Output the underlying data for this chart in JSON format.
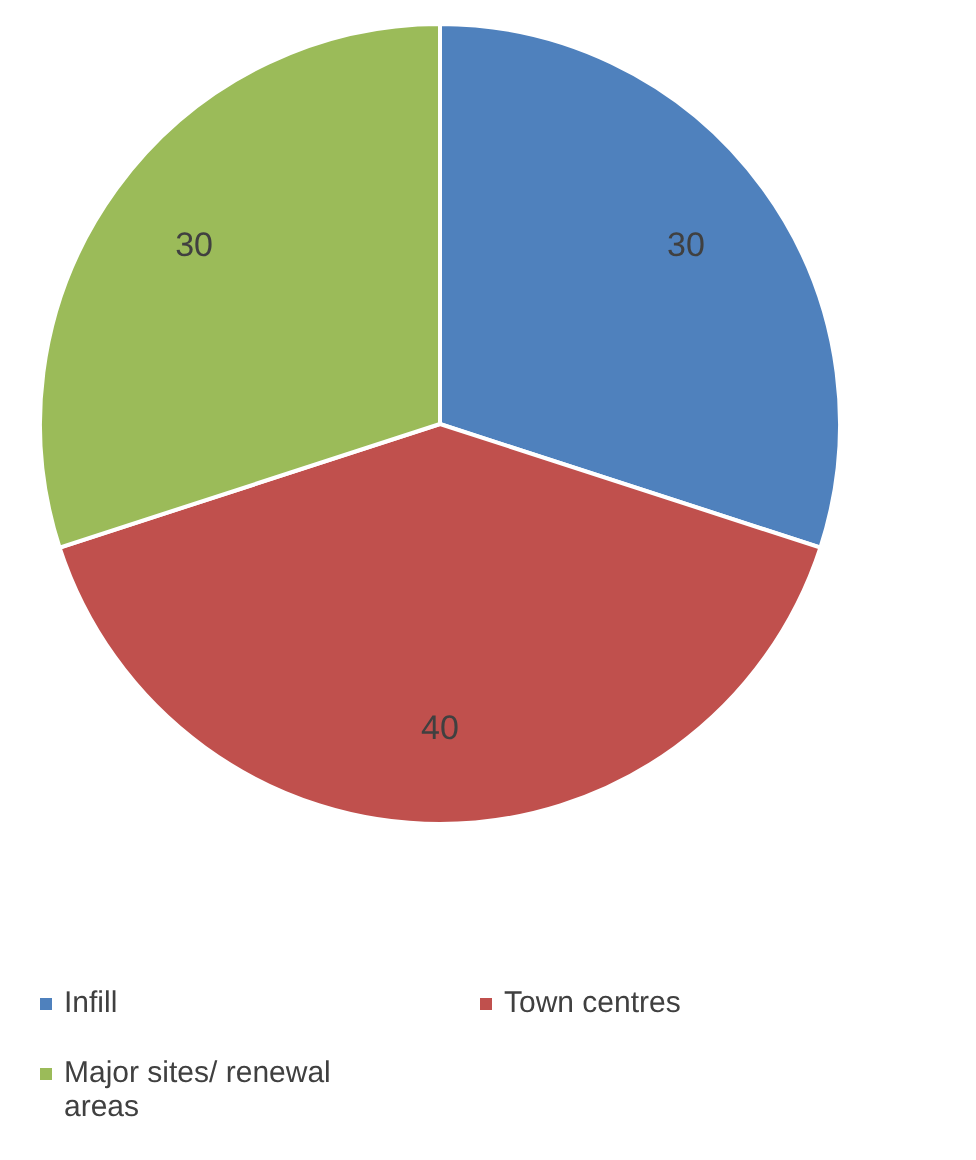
{
  "chart_data": {
    "type": "pie",
    "categories": [
      "Infill",
      "Town centres",
      "Major sites/ renewal areas"
    ],
    "values": [
      30,
      40,
      30
    ],
    "colors": [
      "#4f81bd",
      "#c0504d",
      "#9bbb59"
    ],
    "data_labels": true,
    "legend": "bottom"
  }
}
